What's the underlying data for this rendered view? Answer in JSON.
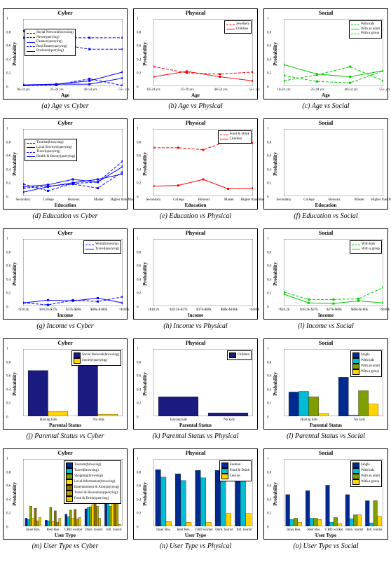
{
  "colors": {
    "cyber": "#0000ff",
    "physical": "#ff0000",
    "social": "#00cc00",
    "axis": "#000000",
    "bar_palette": [
      "#002a8f",
      "#00bcd4",
      "#7f9e00",
      "#ffd400",
      "#8c6d00",
      "#b8a000",
      "#e6c200"
    ]
  },
  "ylim": [
    0,
    1
  ],
  "yticks": [
    0,
    0.2,
    0.4,
    0.6,
    0.8,
    1
  ],
  "ylabel": "Probability",
  "x_age": {
    "ticks": [
      "18-24 yrs",
      "25-39 yrs",
      "40-54 yrs",
      "55+ yrs"
    ],
    "label": "Age"
  },
  "x_edu": {
    "ticks": [
      "Secondary",
      "College",
      "Honours",
      "Master",
      "Higher than Master"
    ],
    "label": "Education"
  },
  "x_inc": {
    "ticks": [
      "<$18.2k",
      "$18.2k-$37k",
      "$37k-$80k",
      "$80k-$180k",
      ">$180k"
    ],
    "label": "Income"
  },
  "x_par": {
    "ticks": [
      "Having kids",
      "No kids"
    ],
    "label": "Parental Status"
  },
  "x_usr": {
    "ticks": [
      "Inner Res.",
      "Rest Res.",
      "CBD worker",
      "Dom. tourist",
      "Intl. tourist"
    ],
    "label": "User Type"
  },
  "rows": [
    {
      "x": "x_age",
      "panels": [
        {
          "title": "Cyber",
          "color": "cyber",
          "caption": "(a) Age vs Cyber",
          "legend_pos": "left",
          "lines": [
            {
              "label": "Social Network(browsing)",
              "dash": "4,2",
              "y": [
                0.82,
                0.63,
                0.55,
                0.55
              ]
            },
            {
              "label": "News(querying)",
              "dash": "4,2",
              "y": [
                0.72,
                0.72,
                0.72,
                0.72
              ]
            },
            {
              "label": "Finance(querying)",
              "dash": "",
              "y": [
                0.02,
                0.03,
                0.08,
                0.21
              ]
            },
            {
              "label": "Real Estate(querying)",
              "dash": "4,2",
              "y": [
                0.01,
                0.02,
                0.11,
                0.01
              ]
            },
            {
              "label": "Business(querying)",
              "dash": "",
              "y": [
                0.01,
                0.03,
                0.03,
                0.12
              ]
            }
          ]
        },
        {
          "title": "Physical",
          "color": "physical",
          "caption": "(b) Age vs Physical",
          "legend_pos": "right",
          "lines": [
            {
              "label": "Jewellery",
              "dash": "4,2",
              "y": [
                0.29,
                0.2,
                0.18,
                0.21
              ]
            },
            {
              "label": "Children",
              "dash": "",
              "y": [
                0.14,
                0.22,
                0.14,
                0.08
              ]
            }
          ]
        },
        {
          "title": "Social",
          "color": "social",
          "caption": "(c) Age vs Social",
          "legend_pos": "right",
          "lines": [
            {
              "label": "With kids",
              "dash": "4,2",
              "y": [
                0.08,
                0.17,
                0.29,
                0.08
              ]
            },
            {
              "label": "With an adult",
              "dash": "",
              "y": [
                0.32,
                0.18,
                0.14,
                0.23
              ]
            },
            {
              "label": "With a group",
              "dash": "4,2",
              "y": [
                0.16,
                0.07,
                0.05,
                0.23
              ]
            }
          ]
        }
      ]
    },
    {
      "x": "x_edu",
      "panels": [
        {
          "title": "Cyber",
          "color": "cyber",
          "caption": "(d) Education vs Cyber",
          "legend_pos": "left",
          "lines": [
            {
              "label": "Tourism(browsing)",
              "dash": "4,2",
              "y": [
                0.18,
                0.08,
                0.19,
                0.21,
                0.52
              ]
            },
            {
              "label": "Local Services(querying)",
              "dash": "",
              "y": [
                0.14,
                0.17,
                0.25,
                0.21,
                0.44
              ]
            },
            {
              "label": "Travel(querying)",
              "dash": "4,2",
              "y": [
                0.12,
                0.15,
                0.18,
                0.12,
                0.36
              ]
            },
            {
              "label": "Health & Beauty(querying)",
              "dash": "",
              "y": [
                0.06,
                0.14,
                0.2,
                0.25,
                0.33
              ]
            }
          ]
        },
        {
          "title": "Physical",
          "color": "physical",
          "caption": "(e) Education vs Physical",
          "legend_pos": "right",
          "lines": [
            {
              "label": "Food & Drink",
              "dash": "4,2",
              "y": [
                0.72,
                0.72,
                0.69,
                0.82,
                0.79
              ]
            },
            {
              "label": "Children",
              "dash": "",
              "y": [
                0.15,
                0.16,
                0.25,
                0.11,
                0.12
              ]
            }
          ]
        },
        {
          "title": "Social",
          "color": "social",
          "caption": "(f) Education vs Social",
          "legend_pos": "right",
          "lines": []
        }
      ]
    },
    {
      "x": "x_inc",
      "panels": [
        {
          "title": "Cyber",
          "color": "cyber",
          "caption": "(g) Income vs Cyber",
          "legend_pos": "right",
          "lines": [
            {
              "label": "Work(browsing)",
              "dash": "4,2",
              "y": [
                0.05,
                0.02,
                0.09,
                0.07,
                0.14
              ]
            },
            {
              "label": "Travel(querying)",
              "dash": "",
              "y": [
                0.05,
                0.09,
                0.08,
                0.12,
                0.05
              ]
            }
          ]
        },
        {
          "title": "Physical",
          "color": "physical",
          "caption": "(h) Income vs Physical",
          "legend_pos": "right",
          "lines": []
        },
        {
          "title": "Social",
          "color": "social",
          "caption": "(i) Income vs Social",
          "legend_pos": "right",
          "lines": [
            {
              "label": "With kids",
              "dash": "4,2",
              "y": [
                0.21,
                0.1,
                0.1,
                0.11,
                0.28
              ]
            },
            {
              "label": "With a group",
              "dash": "",
              "y": [
                0.18,
                0.05,
                0.04,
                0.08,
                0.05
              ]
            }
          ]
        }
      ]
    },
    {
      "x": "x_par",
      "type": "bar",
      "panels": [
        {
          "title": "Cyber",
          "caption": "(j) Parental Status vs Cyber",
          "legend_pos": "right",
          "series": [
            {
              "label": "Social Network(browsing)",
              "color": "#1a1a80",
              "y": [
                0.68,
                0.79
              ]
            },
            {
              "label": "Society(querying)",
              "color": "#ffd400",
              "y": [
                0.07,
                0.03
              ]
            }
          ]
        },
        {
          "title": "Physical",
          "caption": "(k) Parental Status vs Physical",
          "legend_pos": "right",
          "series": [
            {
              "label": "Children",
              "color": "#1a1a80",
              "y": [
                0.29,
                0.05
              ]
            }
          ]
        },
        {
          "title": "Social",
          "caption": "(l) Parental Status vs Social",
          "legend_pos": "right",
          "series": [
            {
              "label": "Single",
              "color": "#002a8f",
              "y": [
                0.36,
                0.58
              ]
            },
            {
              "label": "With kids",
              "color": "#00bcd4",
              "y": [
                0.37,
                0.02
              ]
            },
            {
              "label": "With an adult",
              "color": "#7f9e00",
              "y": [
                0.29,
                0.38
              ]
            },
            {
              "label": "With a group",
              "color": "#ffd400",
              "y": [
                0.04,
                0.18
              ]
            }
          ]
        }
      ]
    },
    {
      "x": "x_usr",
      "type": "bar",
      "panels": [
        {
          "title": "Cyber",
          "caption": "(m) User Type vs Cyber",
          "legend_pos": "right",
          "series": [
            {
              "label": "Tourism(browsing)",
              "color": "#002a8f",
              "y": [
                0.12,
                0.09,
                0.18,
                0.26,
                0.42
              ]
            },
            {
              "label": "Travel(browsing)",
              "color": "#00bcd4",
              "y": [
                0.1,
                0.08,
                0.14,
                0.28,
                0.44
              ]
            },
            {
              "label": "Shopping(browsing)",
              "color": "#7f9e00",
              "y": [
                0.3,
                0.28,
                0.24,
                0.29,
                0.3
              ]
            },
            {
              "label": "Local Information(browsing)",
              "color": "#ffd400",
              "y": [
                0.12,
                0.07,
                0.12,
                0.32,
                0.38
              ]
            },
            {
              "label": "Entertainment & Arts(querying)",
              "color": "#8c6d00",
              "y": [
                0.27,
                0.23,
                0.25,
                0.36,
                0.35
              ]
            },
            {
              "label": "Travel & Recreation(querying)",
              "color": "#b8a000",
              "y": [
                0.08,
                0.06,
                0.11,
                0.3,
                0.44
              ]
            },
            {
              "label": "Food & Drink(querying)",
              "color": "#e6c200",
              "y": [
                0.13,
                0.12,
                0.13,
                0.12,
                0.03
              ]
            }
          ]
        },
        {
          "title": "Physical",
          "caption": "(n) User Type vs Physical",
          "legend_pos": "right",
          "series": [
            {
              "label": "Fashion",
              "color": "#002a8f",
              "y": [
                0.84,
                0.78,
                0.83,
                0.83,
                0.79
              ]
            },
            {
              "label": "Food & Drink",
              "color": "#00bcd4",
              "y": [
                0.73,
                0.68,
                0.72,
                0.85,
                0.84
              ]
            },
            {
              "label": "Leisure",
              "color": "#ffd400",
              "y": [
                0.07,
                0.06,
                0.06,
                0.19,
                0.19
              ]
            }
          ]
        },
        {
          "title": "Social",
          "caption": "(o) User Type vs Social",
          "legend_pos": "right",
          "series": [
            {
              "label": "Single",
              "color": "#002a8f",
              "y": [
                0.47,
                0.53,
                0.61,
                0.47,
                0.38
              ]
            },
            {
              "label": "With kids",
              "color": "#00bcd4",
              "y": [
                0.1,
                0.12,
                0.06,
                0.11,
                0.05
              ]
            },
            {
              "label": "With an adult",
              "color": "#7f9e00",
              "y": [
                0.12,
                0.12,
                0.13,
                0.17,
                0.38
              ]
            },
            {
              "label": "With a group",
              "color": "#ffd400",
              "y": [
                0.06,
                0.1,
                0.04,
                0.17,
                0.15
              ]
            }
          ]
        }
      ]
    }
  ]
}
